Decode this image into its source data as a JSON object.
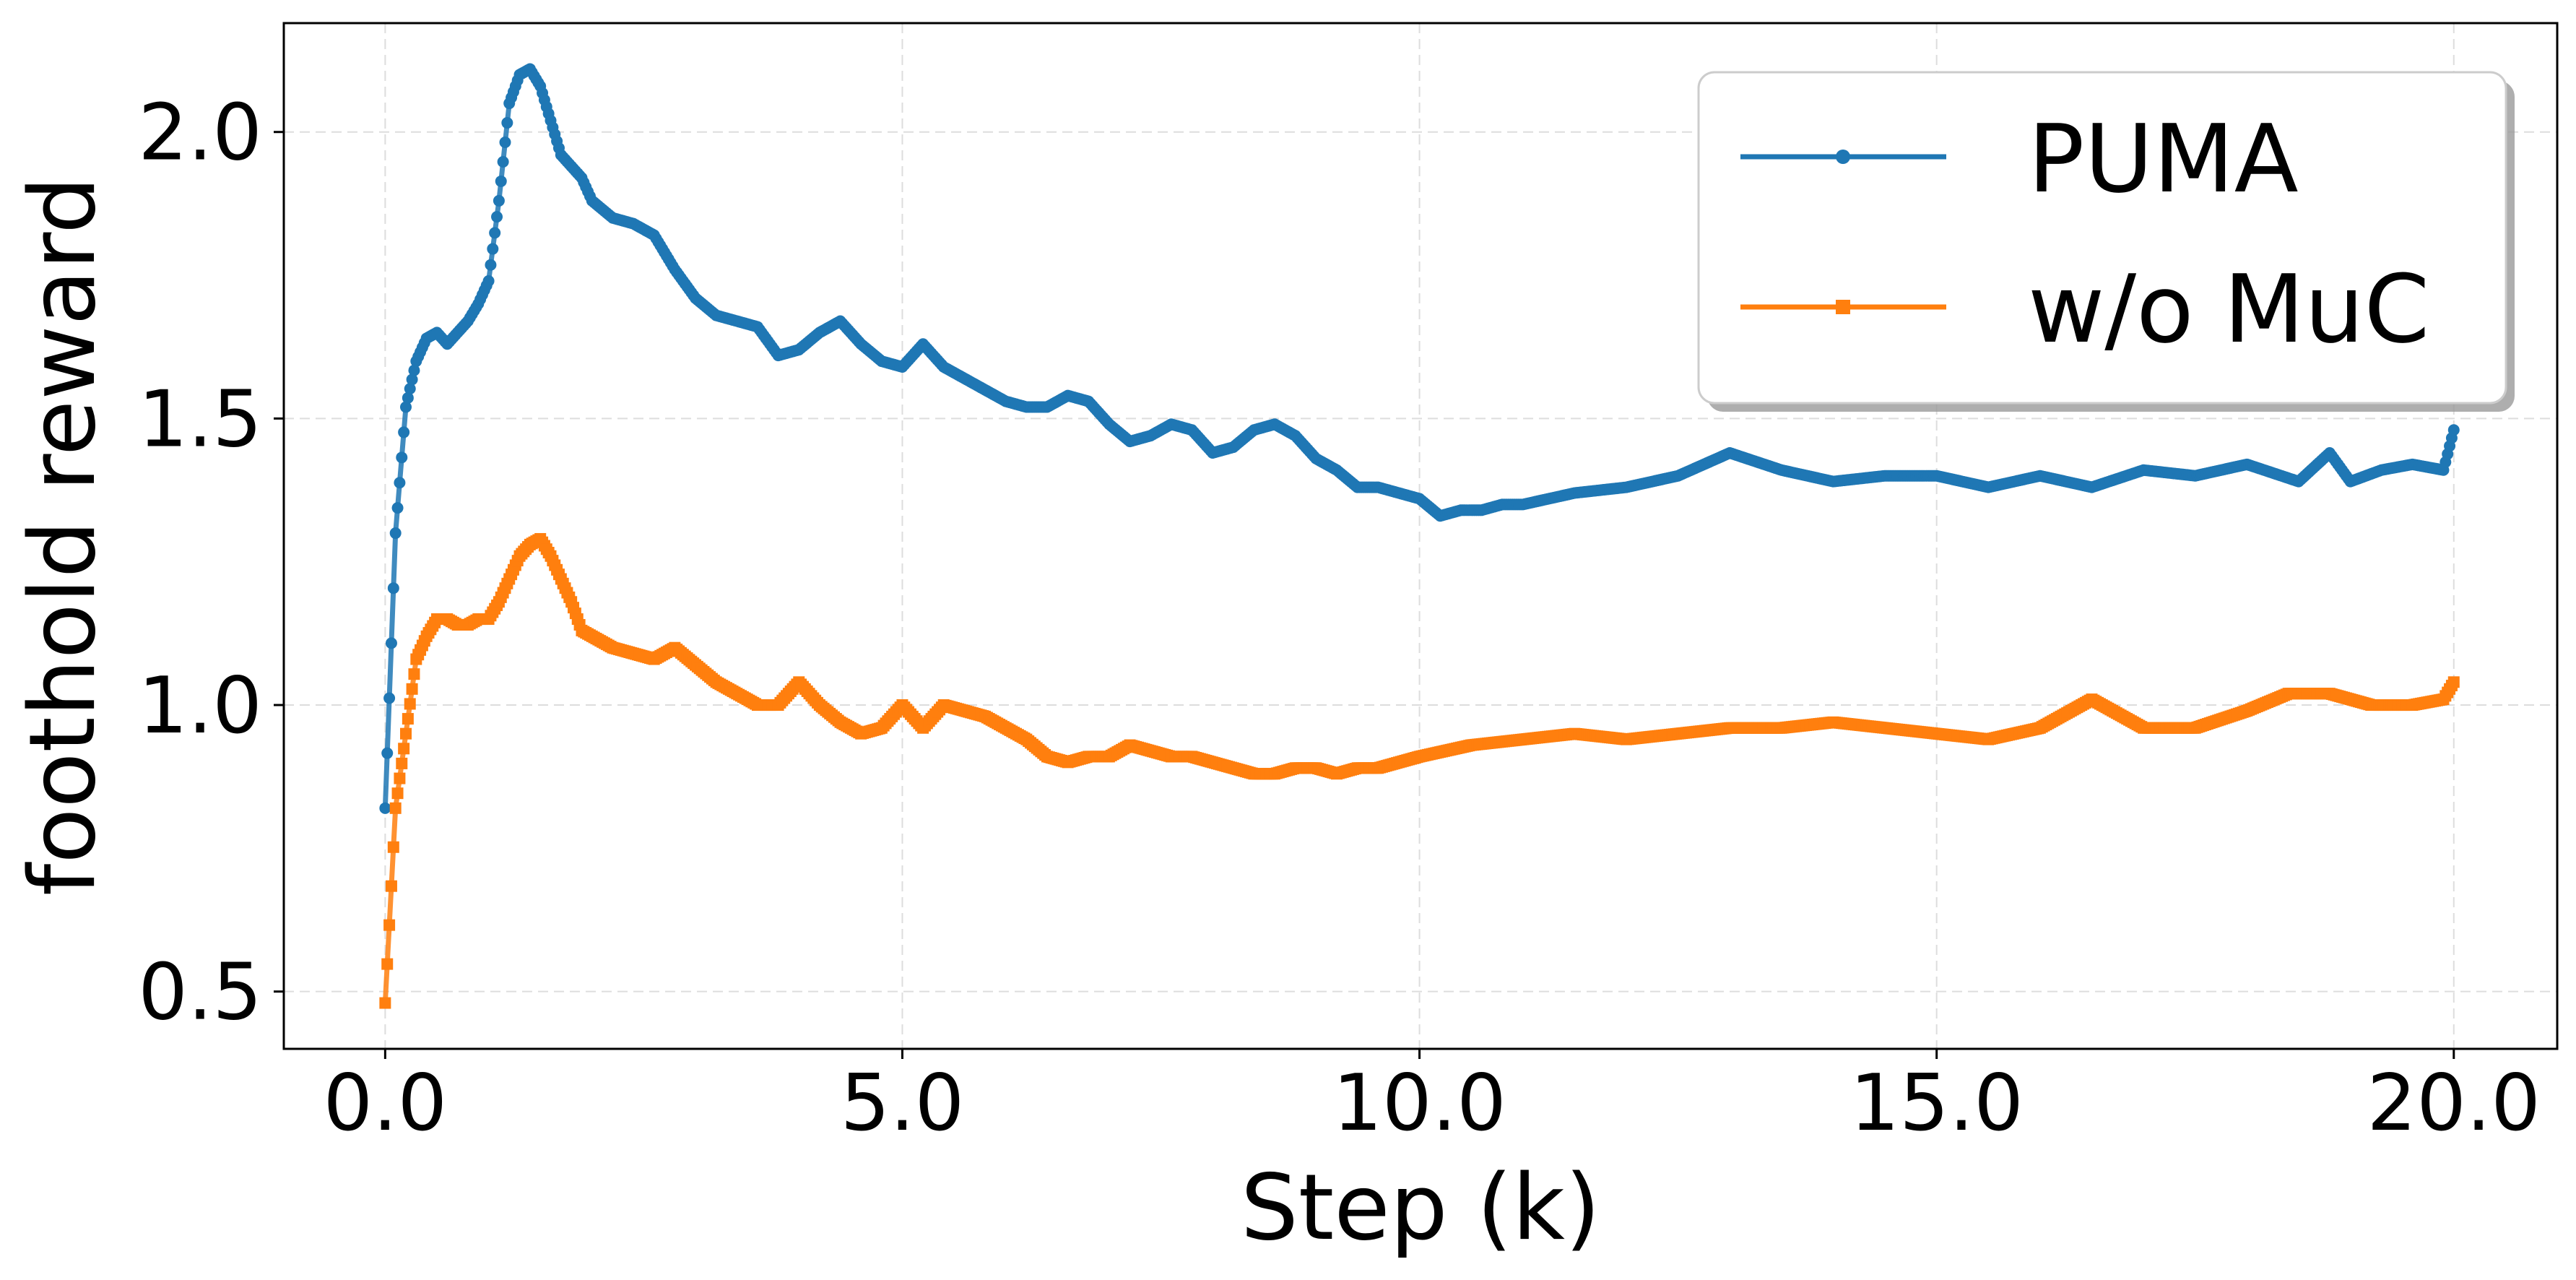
{
  "chart_data": {
    "type": "line",
    "title": "",
    "xlabel": "Step (k)",
    "ylabel": "foothold reward",
    "xlim": [
      -0.98,
      21.0
    ],
    "ylim": [
      0.4,
      2.19
    ],
    "xticks": [
      0.0,
      5.0,
      10.0,
      15.0,
      20.0
    ],
    "xtick_labels": [
      "0.0",
      "5.0",
      "10.0",
      "15.0",
      "20.0"
    ],
    "yticks": [
      0.5,
      1.0,
      1.5,
      2.0
    ],
    "ytick_labels": [
      "0.5",
      "1.0",
      "1.5",
      "2.0"
    ],
    "grid": true,
    "legend_position": "top-right",
    "series": [
      {
        "name": "PUMA",
        "color": "#1f77b4",
        "marker": "circle",
        "x": [
          0.0,
          0.1,
          0.2,
          0.3,
          0.4,
          0.5,
          0.6,
          0.7,
          0.8,
          0.9,
          1.0,
          1.1,
          1.2,
          1.3,
          1.4,
          1.5,
          1.6,
          1.7,
          1.8,
          1.9,
          2.0,
          2.2,
          2.4,
          2.6,
          2.8,
          3.0,
          3.2,
          3.4,
          3.6,
          3.8,
          4.0,
          4.2,
          4.4,
          4.6,
          4.8,
          5.0,
          5.2,
          5.4,
          5.6,
          5.8,
          6.0,
          6.2,
          6.4,
          6.6,
          6.8,
          7.0,
          7.2,
          7.4,
          7.6,
          7.8,
          8.0,
          8.2,
          8.4,
          8.6,
          8.8,
          9.0,
          9.2,
          9.4,
          9.6,
          9.8,
          10.0,
          10.2,
          10.4,
          10.6,
          10.8,
          11.0,
          11.5,
          12.0,
          12.5,
          13.0,
          13.5,
          14.0,
          14.5,
          15.0,
          15.5,
          16.0,
          16.5,
          17.0,
          17.5,
          18.0,
          18.5,
          18.8,
          19.0,
          19.3,
          19.6,
          19.9,
          20.0
        ],
        "y": [
          0.82,
          1.3,
          1.52,
          1.6,
          1.64,
          1.65,
          1.63,
          1.65,
          1.67,
          1.7,
          1.74,
          1.88,
          2.05,
          2.1,
          2.11,
          2.08,
          2.02,
          1.96,
          1.94,
          1.92,
          1.88,
          1.85,
          1.84,
          1.82,
          1.76,
          1.71,
          1.68,
          1.67,
          1.66,
          1.61,
          1.62,
          1.65,
          1.67,
          1.63,
          1.6,
          1.59,
          1.63,
          1.59,
          1.57,
          1.55,
          1.53,
          1.52,
          1.52,
          1.54,
          1.53,
          1.49,
          1.46,
          1.47,
          1.49,
          1.48,
          1.44,
          1.45,
          1.48,
          1.49,
          1.47,
          1.43,
          1.41,
          1.38,
          1.38,
          1.37,
          1.36,
          1.33,
          1.34,
          1.34,
          1.35,
          1.35,
          1.37,
          1.38,
          1.4,
          1.44,
          1.41,
          1.39,
          1.4,
          1.4,
          1.38,
          1.4,
          1.38,
          1.41,
          1.4,
          1.42,
          1.39,
          1.44,
          1.39,
          1.41,
          1.42,
          1.41,
          1.48
        ]
      },
      {
        "name": "w/o MuC",
        "color": "#ff7f0e",
        "marker": "square",
        "x": [
          0.0,
          0.1,
          0.2,
          0.3,
          0.4,
          0.5,
          0.6,
          0.7,
          0.8,
          0.9,
          1.0,
          1.1,
          1.2,
          1.3,
          1.4,
          1.5,
          1.6,
          1.7,
          1.8,
          1.9,
          2.0,
          2.2,
          2.4,
          2.6,
          2.8,
          3.0,
          3.2,
          3.4,
          3.6,
          3.8,
          4.0,
          4.2,
          4.4,
          4.6,
          4.8,
          5.0,
          5.2,
          5.4,
          5.6,
          5.8,
          6.0,
          6.2,
          6.4,
          6.6,
          6.8,
          7.0,
          7.2,
          7.4,
          7.6,
          7.8,
          8.0,
          8.2,
          8.4,
          8.6,
          8.8,
          9.0,
          9.2,
          9.4,
          9.6,
          9.8,
          10.0,
          10.5,
          11.0,
          11.5,
          12.0,
          12.5,
          13.0,
          13.5,
          14.0,
          14.5,
          15.0,
          15.5,
          16.0,
          16.5,
          17.0,
          17.5,
          18.0,
          18.4,
          18.8,
          19.2,
          19.6,
          19.9,
          20.0
        ],
        "y": [
          0.48,
          0.82,
          0.95,
          1.08,
          1.12,
          1.15,
          1.15,
          1.14,
          1.14,
          1.15,
          1.15,
          1.18,
          1.22,
          1.26,
          1.28,
          1.29,
          1.26,
          1.22,
          1.18,
          1.13,
          1.12,
          1.1,
          1.09,
          1.08,
          1.1,
          1.07,
          1.04,
          1.02,
          1.0,
          1.0,
          1.04,
          1.0,
          0.97,
          0.95,
          0.96,
          1.0,
          0.96,
          1.0,
          0.99,
          0.98,
          0.96,
          0.94,
          0.91,
          0.9,
          0.91,
          0.91,
          0.93,
          0.92,
          0.91,
          0.91,
          0.9,
          0.89,
          0.88,
          0.88,
          0.89,
          0.89,
          0.88,
          0.89,
          0.89,
          0.9,
          0.91,
          0.93,
          0.94,
          0.95,
          0.94,
          0.95,
          0.96,
          0.96,
          0.97,
          0.96,
          0.95,
          0.94,
          0.96,
          1.01,
          0.96,
          0.96,
          0.99,
          1.02,
          1.02,
          1.0,
          1.0,
          1.01,
          1.04
        ]
      }
    ]
  }
}
